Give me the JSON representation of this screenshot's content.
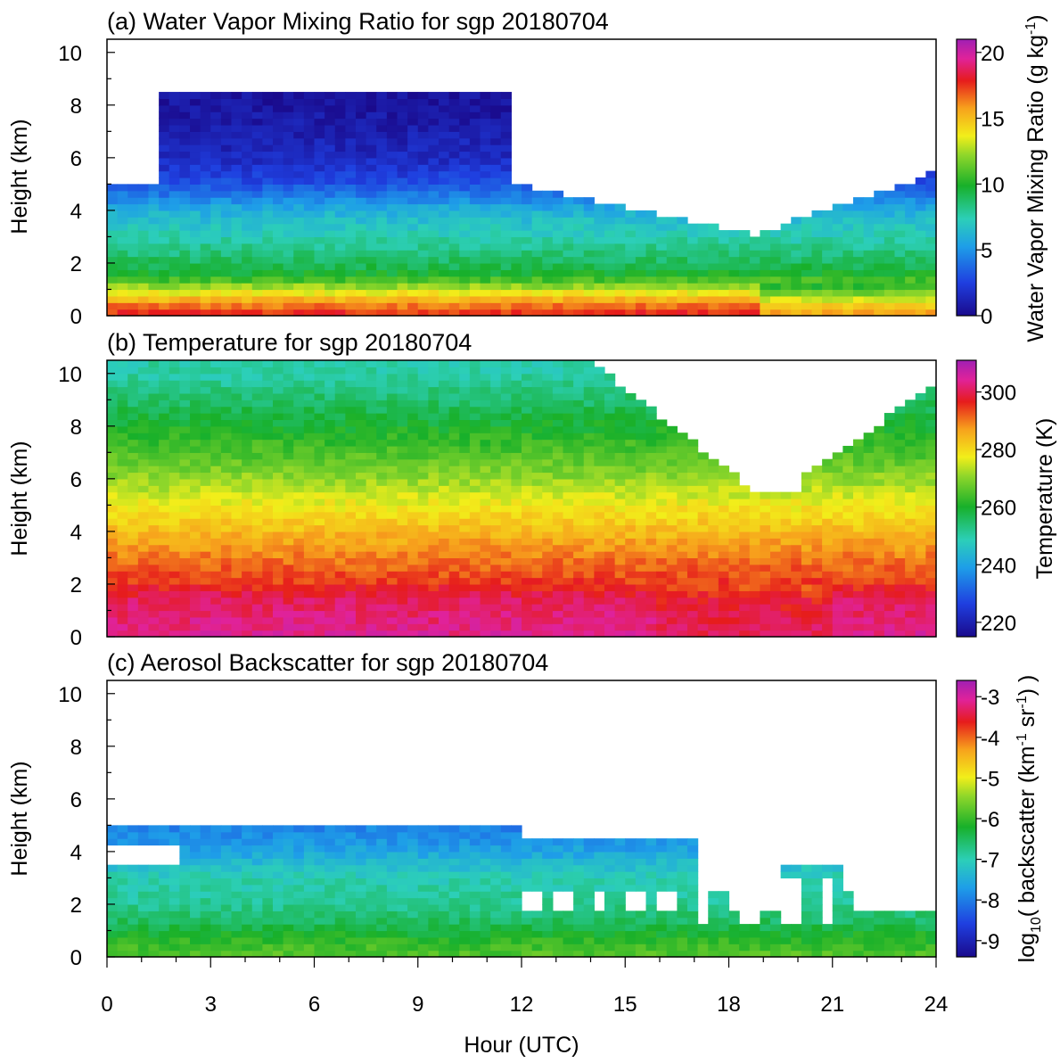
{
  "chart_data": [
    {
      "type": "heatmap",
      "title": "(a) Water Vapor Mixing Ratio for sgp 20180704",
      "ylabel": "Height (km)",
      "xlim": [
        0,
        24
      ],
      "ylim": [
        0,
        10.5
      ],
      "yticks": [
        "0",
        "2",
        "4",
        "6",
        "8",
        "10"
      ],
      "colorbar": {
        "label_main": "Water Vapor Mixing Ratio (g kg",
        "label_sup": "-1",
        "label_end": ")",
        "range": [
          0,
          21
        ],
        "ticks": [
          "0",
          "5",
          "10",
          "15",
          "20"
        ]
      },
      "profile": {
        "heights_km": [
          0,
          0.5,
          1.0,
          1.5,
          2.0,
          3.0,
          4.0,
          5.0,
          6.0,
          8.0
        ],
        "values": [
          18,
          16,
          13,
          10,
          9,
          7.5,
          6,
          3,
          1.5,
          0.5
        ]
      }
    },
    {
      "type": "heatmap",
      "title": "(b) Temperature for sgp 20180704",
      "ylabel": "Height (km)",
      "xlim": [
        0,
        24
      ],
      "ylim": [
        0,
        10.5
      ],
      "yticks": [
        "0",
        "2",
        "4",
        "6",
        "8",
        "10"
      ],
      "colorbar": {
        "label_main": "Temperature (K)",
        "range": [
          215,
          311
        ],
        "ticks": [
          "220",
          "240",
          "260",
          "280",
          "300"
        ]
      },
      "profile": {
        "heights_km": [
          0,
          1.5,
          2.0,
          3.0,
          4.0,
          5.0,
          6.0,
          7.0,
          8.0,
          9.0,
          10.0
        ],
        "values": [
          304,
          300,
          295,
          290,
          284,
          278,
          271,
          265,
          260,
          255,
          250
        ]
      }
    },
    {
      "type": "heatmap",
      "title": "(c) Aerosol Backscatter for sgp 20180704",
      "ylabel": "Height (km)",
      "xlabel": "Hour (UTC)",
      "xlim": [
        0,
        24
      ],
      "ylim": [
        0,
        10.5
      ],
      "xticks": [
        "0",
        "3",
        "6",
        "9",
        "12",
        "15",
        "18",
        "21",
        "24"
      ],
      "yticks": [
        "0",
        "2",
        "4",
        "6",
        "8",
        "10"
      ],
      "colorbar": {
        "label_pre": "log",
        "label_sub": "10",
        "label_mid": "( backscatter (km",
        "label_sup1": "-1",
        "label_mid2": " sr",
        "label_sup2": "-1",
        "label_end": ") )",
        "range": [
          -9.4,
          -2.6
        ],
        "ticks": [
          "-9",
          "-8",
          "-7",
          "-6",
          "-5",
          "-4",
          "-3"
        ]
      },
      "profile": {
        "heights_km": [
          0,
          0.5,
          1.0,
          1.5,
          2.0,
          3.0,
          4.0,
          5.0
        ],
        "values": [
          -5.8,
          -6.0,
          -6.3,
          -6.6,
          -6.8,
          -7.0,
          -7.6,
          -8.0
        ]
      }
    }
  ]
}
